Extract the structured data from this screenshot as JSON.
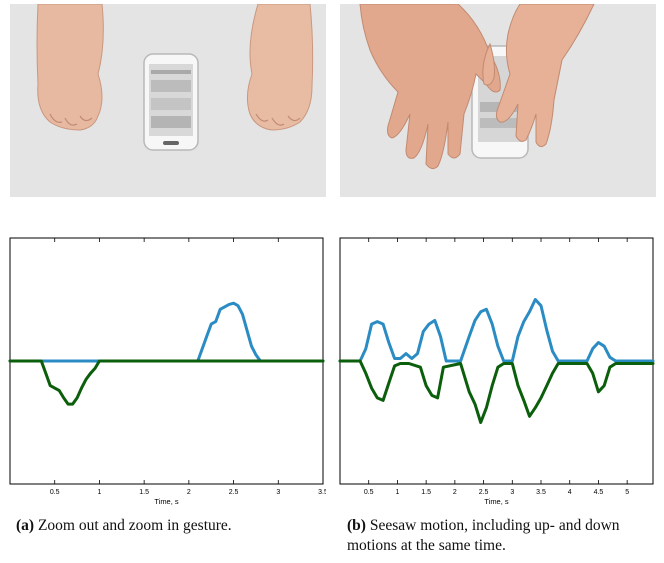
{
  "captions": {
    "a": {
      "label": "(a)",
      "text": " Zoom out and zoom in gesture."
    },
    "b": {
      "label": "(b)",
      "text": " Seesaw motion, including up- and down motions at the same time."
    }
  },
  "colors": {
    "blue_series": "#2b8cc4",
    "green_series": "#0b5e0b",
    "frame": "#000000"
  },
  "chart_data": [
    {
      "type": "line",
      "xlabel": "Time, s",
      "x_ticks": [
        "0.5",
        "1",
        "1.5",
        "2",
        "2.5",
        "3",
        "3.5"
      ],
      "xlim": [
        0,
        3.5
      ],
      "ylim": [
        -1,
        1
      ],
      "grid": false,
      "series": [
        {
          "color": "#2b8cc4",
          "x": [
            0,
            2.1,
            2.2,
            2.25,
            2.3,
            2.35,
            2.4,
            2.45,
            2.5,
            2.55,
            2.6,
            2.65,
            2.7,
            2.75,
            2.8,
            3.5
          ],
          "y": [
            0,
            0,
            0.2,
            0.3,
            0.32,
            0.42,
            0.44,
            0.46,
            0.47,
            0.45,
            0.38,
            0.25,
            0.12,
            0.05,
            0,
            0
          ]
        },
        {
          "color": "#0b5e0b",
          "x": [
            0,
            0.35,
            0.4,
            0.45,
            0.5,
            0.55,
            0.6,
            0.65,
            0.7,
            0.75,
            0.8,
            0.85,
            0.9,
            0.95,
            1.0,
            3.5
          ],
          "y": [
            0,
            0,
            -0.1,
            -0.2,
            -0.22,
            -0.24,
            -0.3,
            -0.35,
            -0.35,
            -0.3,
            -0.22,
            -0.15,
            -0.1,
            -0.06,
            0,
            0
          ]
        }
      ]
    },
    {
      "type": "line",
      "xlabel": "Time, s",
      "x_ticks": [
        "0.5",
        "1",
        "1.5",
        "2",
        "2.5",
        "3",
        "3.5",
        "4",
        "4.5",
        "5"
      ],
      "xlim": [
        0,
        5.45
      ],
      "ylim": [
        -1,
        1
      ],
      "grid": false,
      "series": [
        {
          "color": "#2b8cc4",
          "x": [
            0,
            0.35,
            0.45,
            0.55,
            0.65,
            0.75,
            0.85,
            0.95,
            1.05,
            1.15,
            1.25,
            1.35,
            1.45,
            1.55,
            1.65,
            1.75,
            1.85,
            2.1,
            2.25,
            2.35,
            2.45,
            2.55,
            2.65,
            2.75,
            2.85,
            3.0,
            3.1,
            3.2,
            3.3,
            3.4,
            3.5,
            3.6,
            3.7,
            3.8,
            4.3,
            4.4,
            4.5,
            4.6,
            4.7,
            4.8,
            5.45
          ],
          "y": [
            0,
            0,
            0.1,
            0.3,
            0.32,
            0.3,
            0.15,
            0.02,
            0.02,
            0.06,
            0.02,
            0.06,
            0.24,
            0.3,
            0.33,
            0.2,
            0,
            0,
            0.2,
            0.33,
            0.4,
            0.42,
            0.3,
            0.12,
            0,
            0,
            0.2,
            0.32,
            0.4,
            0.5,
            0.45,
            0.25,
            0.08,
            0,
            0,
            0.1,
            0.15,
            0.12,
            0.03,
            0,
            0
          ]
        },
        {
          "color": "#0b5e0b",
          "x": [
            0,
            0.35,
            0.45,
            0.55,
            0.65,
            0.75,
            0.85,
            0.95,
            1.05,
            1.2,
            1.4,
            1.5,
            1.6,
            1.7,
            1.8,
            2.1,
            2.25,
            2.35,
            2.45,
            2.55,
            2.65,
            2.75,
            2.85,
            3.0,
            3.1,
            3.2,
            3.3,
            3.4,
            3.5,
            3.6,
            3.7,
            3.8,
            4.3,
            4.4,
            4.5,
            4.6,
            4.7,
            4.8,
            5.45
          ],
          "y": [
            0,
            0,
            -0.1,
            -0.22,
            -0.3,
            -0.32,
            -0.18,
            -0.04,
            -0.02,
            -0.02,
            -0.05,
            -0.2,
            -0.28,
            -0.3,
            -0.05,
            -0.02,
            -0.25,
            -0.35,
            -0.5,
            -0.38,
            -0.2,
            -0.05,
            -0.02,
            -0.02,
            -0.2,
            -0.32,
            -0.45,
            -0.38,
            -0.3,
            -0.2,
            -0.1,
            -0.02,
            -0.02,
            -0.1,
            -0.25,
            -0.2,
            -0.05,
            -0.02,
            -0.02
          ]
        }
      ]
    }
  ]
}
